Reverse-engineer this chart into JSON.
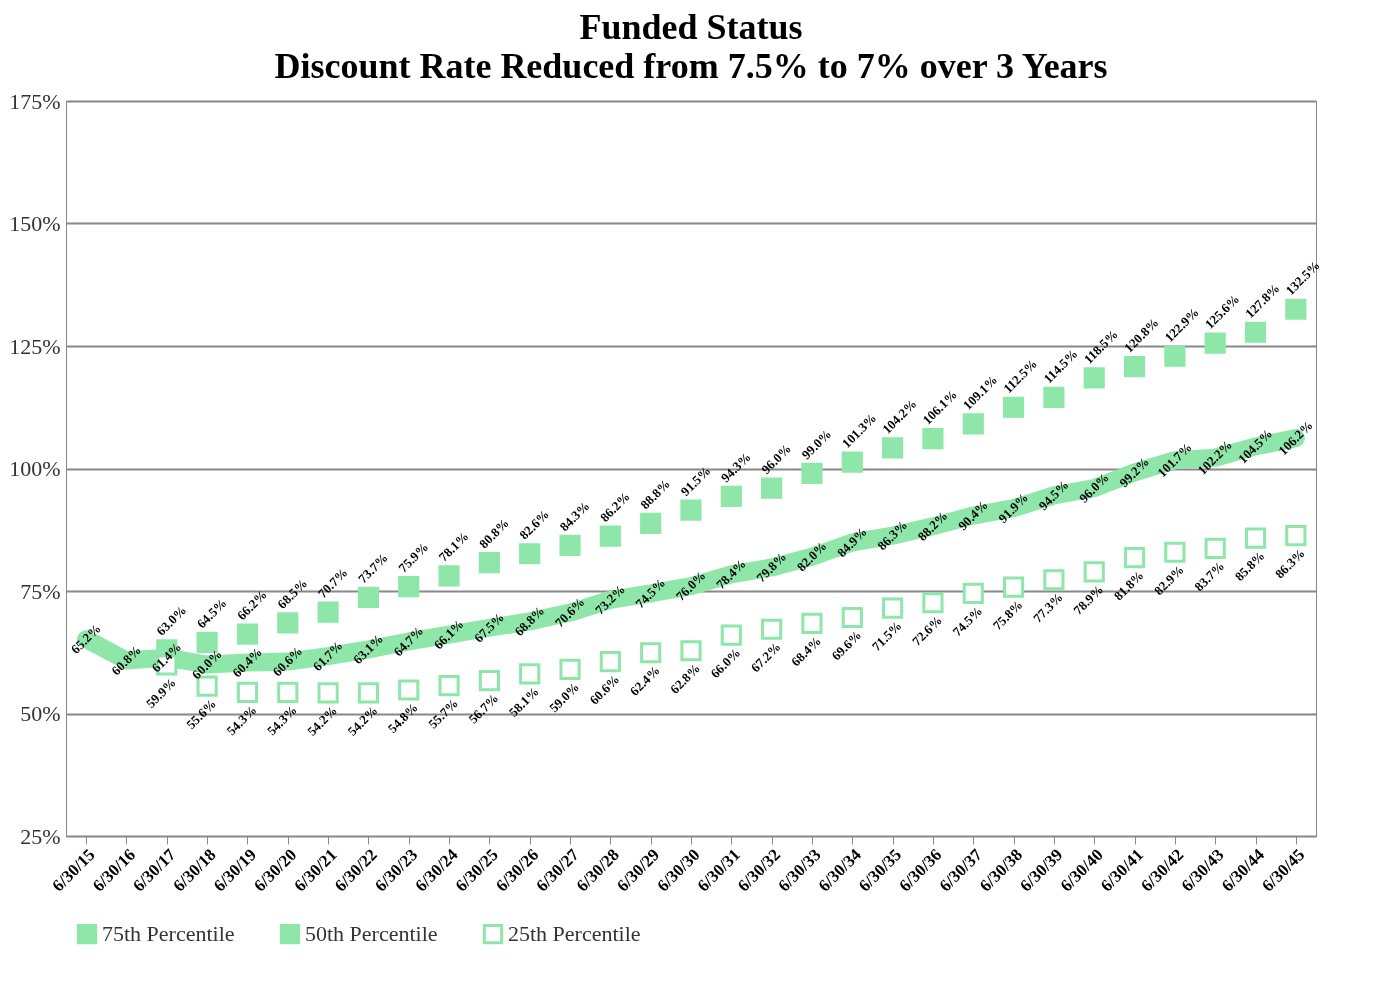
{
  "chart_data": {
    "type": "line",
    "title": "Funded Status",
    "subtitle": "Discount Rate Reduced from 7.5% to 7% over 3 Years",
    "categories": [
      "6/30/15",
      "6/30/16",
      "6/30/17",
      "6/30/18",
      "6/30/19",
      "6/30/20",
      "6/30/21",
      "6/30/22",
      "6/30/23",
      "6/30/24",
      "6/30/25",
      "6/30/26",
      "6/30/27",
      "6/30/28",
      "6/30/29",
      "6/30/30",
      "6/30/31",
      "6/30/32",
      "6/30/33",
      "6/30/34",
      "6/30/35",
      "6/30/36",
      "6/30/37",
      "6/30/38",
      "6/30/39",
      "6/30/40",
      "6/30/41",
      "6/30/42",
      "6/30/43",
      "6/30/44",
      "6/30/45"
    ],
    "ylim": [
      25,
      175
    ],
    "yticks": [
      {
        "value": 25,
        "label": "25%"
      },
      {
        "value": 50,
        "label": "50%"
      },
      {
        "value": 75,
        "label": "75%"
      },
      {
        "value": 100,
        "label": "100%"
      },
      {
        "value": 125,
        "label": "125%"
      },
      {
        "value": 150,
        "label": "150%"
      },
      {
        "value": 175,
        "label": "175%"
      }
    ],
    "grid": "y",
    "legend": "bottom",
    "series": [
      {
        "name": "75th Percentile",
        "type": "scatter",
        "marker": "square",
        "color": "#8ee6a8",
        "values": [
          null,
          null,
          63.0,
          64.5,
          66.2,
          68.5,
          70.7,
          73.7,
          75.9,
          78.1,
          80.8,
          82.6,
          84.3,
          86.2,
          88.8,
          91.5,
          94.3,
          96.0,
          99.0,
          101.3,
          104.2,
          106.1,
          109.1,
          112.5,
          114.5,
          118.5,
          120.8,
          122.9,
          125.6,
          127.8,
          132.5
        ],
        "value_labels": [
          null,
          null,
          "63.0%",
          "64.5%",
          "66.2%",
          "68.5%",
          "70.7%",
          "73.7%",
          "75.9%",
          "78.1%",
          "80.8%",
          "82.6%",
          "84.3%",
          "86.2%",
          "88.8%",
          "91.5%",
          "94.3%",
          "96.0%",
          "99.0%",
          "101.3%",
          "104.2%",
          "106.1%",
          "109.1%",
          "112.5%",
          "114.5%",
          "118.5%",
          "120.8%",
          "122.9%",
          "125.6%",
          "127.8%",
          "132.5%"
        ]
      },
      {
        "name": "50th Percentile",
        "type": "line",
        "marker": "none",
        "color": "#8ee6a8",
        "values": [
          65.2,
          60.8,
          61.4,
          60.0,
          60.4,
          60.6,
          61.7,
          63.1,
          64.7,
          66.1,
          67.5,
          68.8,
          70.6,
          73.2,
          74.5,
          76.0,
          78.4,
          79.8,
          82.0,
          84.9,
          86.3,
          88.2,
          90.4,
          91.9,
          94.5,
          96.0,
          99.2,
          101.7,
          102.2,
          104.5,
          106.2
        ],
        "value_labels": [
          "65.2%",
          "60.8%",
          "61.4%",
          "60.0%",
          "60.4%",
          "60.6%",
          "61.7%",
          "63.1%",
          "64.7%",
          "66.1%",
          "67.5%",
          "68.8%",
          "70.6%",
          "73.2%",
          "74.5%",
          "76.0%",
          "78.4%",
          "79.8%",
          "82.0%",
          "84.9%",
          "86.3%",
          "88.2%",
          "90.4%",
          "91.9%",
          "94.5%",
          "96.0%",
          "99.2%",
          "101.7%",
          "102.2%",
          "104.5%",
          "106.2%"
        ]
      },
      {
        "name": "25th Percentile",
        "type": "scatter",
        "marker": "square",
        "color": "#8ee6a8",
        "values": [
          null,
          null,
          59.9,
          55.6,
          54.3,
          54.3,
          54.2,
          54.2,
          54.8,
          55.7,
          56.7,
          58.1,
          59.0,
          60.6,
          62.4,
          62.8,
          66.0,
          67.2,
          68.4,
          69.6,
          71.5,
          72.6,
          74.5,
          75.8,
          77.3,
          78.9,
          81.8,
          82.9,
          83.7,
          85.8,
          86.3
        ],
        "value_labels": [
          null,
          null,
          "59.9%",
          "55.6%",
          "54.3%",
          "54.3%",
          "54.2%",
          "54.2%",
          "54.8%",
          "55.7%",
          "56.7%",
          "58.1%",
          "59.0%",
          "60.6%",
          "62.4%",
          "62.8%",
          "66.0%",
          "67.2%",
          "68.4%",
          "69.6%",
          "71.5%",
          "72.6%",
          "74.5%",
          "75.8%",
          "77.3%",
          "78.9%",
          "81.8%",
          "82.9%",
          "83.7%",
          "85.8%",
          "86.3%"
        ]
      }
    ]
  }
}
